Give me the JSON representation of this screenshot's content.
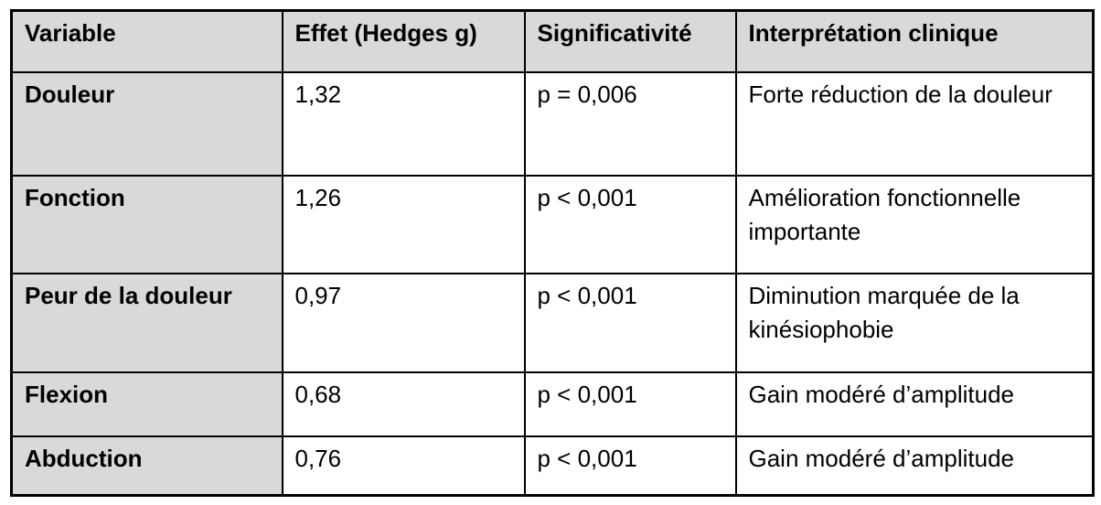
{
  "table": {
    "headers": [
      "Variable",
      "Effet (Hedges g)",
      "Significativité",
      "Interprétation clinique"
    ],
    "rows": [
      {
        "variable": "Douleur",
        "effect": "1,32",
        "significance": "p = 0,006",
        "interpretation": "Forte réduction de la douleur"
      },
      {
        "variable": "Fonction",
        "effect": "1,26",
        "significance": "p < 0,001",
        "interpretation": "Amélioration fonctionnelle importante"
      },
      {
        "variable": "Peur de la douleur",
        "effect": "0,97",
        "significance": "p < 0,001",
        "interpretation": "Diminution marquée de la kinésiophobie"
      },
      {
        "variable": "Flexion",
        "effect": "0,68",
        "significance": "p < 0,001",
        "interpretation": "Gain modéré d’amplitude"
      },
      {
        "variable": "Abduction",
        "effect": "0,76",
        "significance": "p < 0,001",
        "interpretation": "Gain modéré d’amplitude"
      }
    ],
    "colors": {
      "header_bg": "#d9d9d9",
      "row_label_bg": "#d9d9d9",
      "cell_bg": "#ffffff",
      "border": "#000000"
    }
  }
}
